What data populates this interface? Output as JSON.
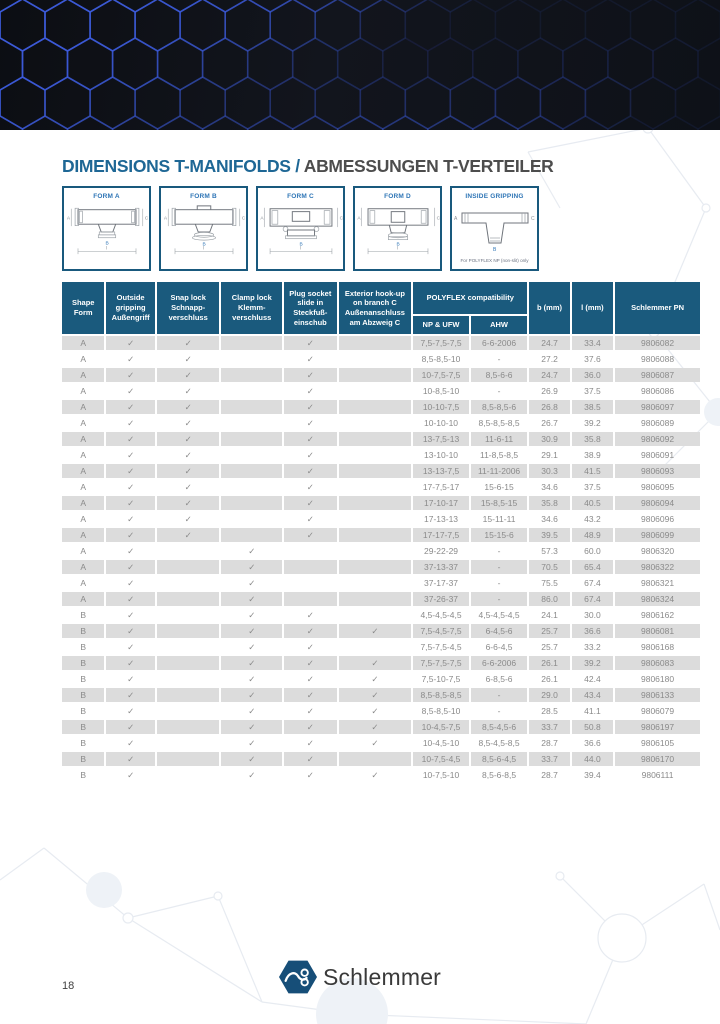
{
  "page_number": "18",
  "title": {
    "primary": "DIMENSIONS T-MANIFOLDS",
    "separator": "/",
    "secondary": "ABMESSUNGEN T-VERTEILER"
  },
  "diagram_dims": {
    "a": "A",
    "c": "C",
    "b": "B",
    "l": "l"
  },
  "forms": [
    {
      "label": "FORM A"
    },
    {
      "label": "FORM B"
    },
    {
      "label": "FORM C"
    },
    {
      "label": "FORM D"
    },
    {
      "label": "INSIDE GRIPPING",
      "note": "For POLYFLEX NP (non-slit) only"
    }
  ],
  "table": {
    "check_glyph": "✓",
    "headers": {
      "shape": "Shape\nForm",
      "outside_gripping": "Outside\ngripping\nAußengriff",
      "snap_lock": "Snap lock\nSchnapp-\nverschluss",
      "clamp_lock": "Clamp lock\nKlemm-\nverschluss",
      "plug_socket": "Plug socket\nslide in\nSteckfuß-\neinschub",
      "exterior_hookup": "Exterior hook-up\non branch C\nAußenanschluss\nam Abzweig C",
      "polyflex": "POLYFLEX compatibility",
      "np_ufw": "NP & UFW",
      "ahw": "AHW",
      "b_mm": "b (mm)",
      "l_mm": "l (mm)",
      "schlemmer_pn": "Schlemmer PN"
    },
    "rows": [
      [
        "A",
        1,
        1,
        0,
        1,
        0,
        "7,5-7,5-7,5",
        "6-6-2006",
        "24.7",
        "33.4",
        "9806082"
      ],
      [
        "A",
        1,
        1,
        0,
        1,
        0,
        "8,5-8,5-10",
        "-",
        "27.2",
        "37.6",
        "9806088"
      ],
      [
        "A",
        1,
        1,
        0,
        1,
        0,
        "10-7,5-7,5",
        "8,5-6-6",
        "24.7",
        "36.0",
        "9806087"
      ],
      [
        "A",
        1,
        1,
        0,
        1,
        0,
        "10-8,5-10",
        "-",
        "26.9",
        "37.5",
        "9806086"
      ],
      [
        "A",
        1,
        1,
        0,
        1,
        0,
        "10-10-7,5",
        "8,5-8,5-6",
        "26.8",
        "38.5",
        "9806097"
      ],
      [
        "A",
        1,
        1,
        0,
        1,
        0,
        "10-10-10",
        "8,5-8,5-8,5",
        "26.7",
        "39.2",
        "9806089"
      ],
      [
        "A",
        1,
        1,
        0,
        1,
        0,
        "13-7,5-13",
        "11-6-11",
        "30.9",
        "35.8",
        "9806092"
      ],
      [
        "A",
        1,
        1,
        0,
        1,
        0,
        "13-10-10",
        "11-8,5-8,5",
        "29.1",
        "38.9",
        "9806091"
      ],
      [
        "A",
        1,
        1,
        0,
        1,
        0,
        "13-13-7,5",
        "11-11-2006",
        "30.3",
        "41.5",
        "9806093"
      ],
      [
        "A",
        1,
        1,
        0,
        1,
        0,
        "17-7,5-17",
        "15-6-15",
        "34.6",
        "37.5",
        "9806095"
      ],
      [
        "A",
        1,
        1,
        0,
        1,
        0,
        "17-10-17",
        "15-8,5-15",
        "35.8",
        "40.5",
        "9806094"
      ],
      [
        "A",
        1,
        1,
        0,
        1,
        0,
        "17-13-13",
        "15-11-11",
        "34.6",
        "43.2",
        "9806096"
      ],
      [
        "A",
        1,
        1,
        0,
        1,
        0,
        "17-17-7,5",
        "15-15-6",
        "39.5",
        "48.9",
        "9806099"
      ],
      [
        "A",
        1,
        0,
        1,
        0,
        0,
        "29-22-29",
        "-",
        "57.3",
        "60.0",
        "9806320"
      ],
      [
        "A",
        1,
        0,
        1,
        0,
        0,
        "37-13-37",
        "-",
        "70.5",
        "65.4",
        "9806322"
      ],
      [
        "A",
        1,
        0,
        1,
        0,
        0,
        "37-17-37",
        "-",
        "75.5",
        "67.4",
        "9806321"
      ],
      [
        "A",
        1,
        0,
        1,
        0,
        0,
        "37-26-37",
        "-",
        "86.0",
        "67.4",
        "9806324"
      ],
      [
        "B",
        1,
        0,
        1,
        1,
        0,
        "4,5-4,5-4,5",
        "4,5-4,5-4,5",
        "24.1",
        "30.0",
        "9806162"
      ],
      [
        "B",
        1,
        0,
        1,
        1,
        1,
        "7,5-4,5-7,5",
        "6-4,5-6",
        "25.7",
        "36.6",
        "9806081"
      ],
      [
        "B",
        1,
        0,
        1,
        1,
        0,
        "7,5-7,5-4,5",
        "6-6-4,5",
        "25.7",
        "33.2",
        "9806168"
      ],
      [
        "B",
        1,
        0,
        1,
        1,
        1,
        "7,5-7,5-7,5",
        "6-6-2006",
        "26.1",
        "39.2",
        "9806083"
      ],
      [
        "B",
        1,
        0,
        1,
        1,
        1,
        "7,5-10-7,5",
        "6-8,5-6",
        "26.1",
        "42.4",
        "9806180"
      ],
      [
        "B",
        1,
        0,
        1,
        1,
        1,
        "8,5-8,5-8,5",
        "-",
        "29.0",
        "43.4",
        "9806133"
      ],
      [
        "B",
        1,
        0,
        1,
        1,
        1,
        "8,5-8,5-10",
        "-",
        "28.5",
        "41.1",
        "9806079"
      ],
      [
        "B",
        1,
        0,
        1,
        1,
        1,
        "10-4,5-7,5",
        "8,5-4,5-6",
        "33.7",
        "50.8",
        "9806197"
      ],
      [
        "B",
        1,
        0,
        1,
        1,
        1,
        "10-4,5-10",
        "8,5-4,5-8,5",
        "28.7",
        "36.6",
        "9806105"
      ],
      [
        "B",
        1,
        0,
        1,
        1,
        0,
        "10-7,5-4,5",
        "8,5-6-4,5",
        "33.7",
        "44.0",
        "9806170"
      ],
      [
        "B",
        1,
        0,
        1,
        1,
        1,
        "10-7,5-10",
        "8,5-6-8,5",
        "28.7",
        "39.4",
        "9806111"
      ]
    ]
  },
  "footer": {
    "brand": "Schlemmer"
  },
  "colors": {
    "header_bg": "#1a5a7d",
    "row_alt": "#dcdcdc",
    "accent_blue": "#2e75b6",
    "title_blue": "#1e6795",
    "title_gray": "#4d4d4d",
    "logo_hex": "#164e78",
    "banner_hex_stroke": "#3d5cdc"
  }
}
